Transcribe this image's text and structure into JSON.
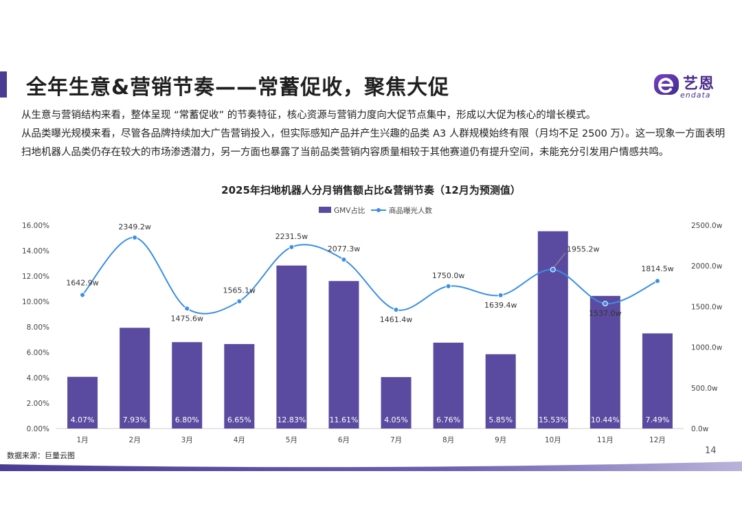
{
  "page": {
    "title": "全年生意&营销节奏——常蓄促收，聚焦大促",
    "page_number": "14",
    "source": "数据来源：巨量云图"
  },
  "logo": {
    "name": "艺恩",
    "english": "endata"
  },
  "intro": {
    "paragraph1": "从生意与营销结构来看，整体呈现 “常蓄促收” 的节奏特征，核心资源与营销力度向大促节点集中，形成以大促为核心的增长模式。",
    "paragraph2": "从品类曝光规模来看，尽管各品牌持续加大广告营销投入，但实际感知产品并产生兴趣的品类 A3 人群规模始终有限（月均不足 2500 万）。这一现象一方面表明扫地机器人品类仍存在较大的市场渗透潜力，另一方面也暴露了当前品类营销内容质量相较于其他赛道仍有提升空间，未能充分引发用户情感共鸣。"
  },
  "colors": {
    "bar": "#5b4ba0",
    "line": "#3a8ee6",
    "accent": "#4b3c93"
  },
  "chart_data": {
    "type": "bar+line",
    "title": "2025年扫地机器人分月销售额占比&营销节奏（12月为预测值）",
    "categories": [
      "1月",
      "2月",
      "3月",
      "4月",
      "5月",
      "6月",
      "7月",
      "8月",
      "9月",
      "10月",
      "11月",
      "12月"
    ],
    "series": [
      {
        "name": "GMV占比",
        "type": "bar",
        "axis": "left",
        "values": [
          4.07,
          7.93,
          6.8,
          6.65,
          12.83,
          11.61,
          4.05,
          6.76,
          5.85,
          15.53,
          10.44,
          7.49
        ],
        "labels": [
          "4.07%",
          "7.93%",
          "6.80%",
          "6.65%",
          "12.83%",
          "11.61%",
          "4.05%",
          "6.76%",
          "5.85%",
          "15.53%",
          "10.44%",
          "7.49%"
        ]
      },
      {
        "name": "商品曝光人数",
        "type": "line",
        "axis": "right",
        "values": [
          1642.9,
          2349.2,
          1475.6,
          1565.1,
          2231.5,
          2077.3,
          1461.4,
          1750.0,
          1639.4,
          1955.2,
          1537.0,
          1814.5
        ],
        "labels": [
          "1642.9w",
          "2349.2w",
          "1475.6w",
          "1565.1w",
          "2231.5w",
          "2077.3w",
          "1461.4w",
          "1750.0w",
          "1639.4w",
          "1955.2w",
          "1537.0w",
          "1814.5w"
        ]
      }
    ],
    "y_left": {
      "range": [
        0,
        16
      ],
      "ticks": [
        0,
        2,
        4,
        6,
        8,
        10,
        12,
        14,
        16
      ],
      "tick_labels": [
        "0.00%",
        "2.00%",
        "4.00%",
        "6.00%",
        "8.00%",
        "10.00%",
        "12.00%",
        "14.00%",
        "16.00%"
      ]
    },
    "y_right": {
      "range": [
        0,
        2500
      ],
      "ticks": [
        0,
        500,
        1000,
        1500,
        2000,
        2500
      ],
      "tick_labels": [
        "0.0w",
        "500.0w",
        "1000.0w",
        "1500.0w",
        "2000.0w",
        "2500.0w"
      ]
    },
    "legend": [
      "GMV占比",
      "商品曝光人数"
    ],
    "legend_position": "top-center",
    "grid": false
  }
}
